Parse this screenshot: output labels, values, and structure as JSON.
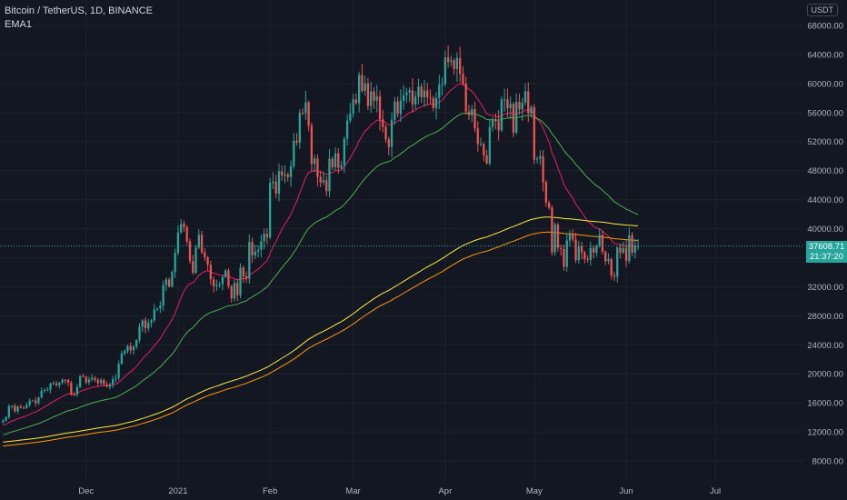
{
  "header": {
    "title": "Bitcoin / TetherUS, 1D, BINANCE",
    "indicator": "EMA1"
  },
  "currency_badge": "USDT",
  "last_price": {
    "price": "37608.71",
    "countdown": "21:37:20"
  },
  "colors": {
    "background": "#131722",
    "up": "#26a69a",
    "down": "#ef5350",
    "ema_fast": "#e91e63",
    "ema_mid": "#4caf50",
    "ema_slow_a": "#ffeb3b",
    "ema_slow_b": "#ff9800",
    "grid": "#1e222d"
  },
  "chart_data": {
    "type": "candlestick",
    "title": "Bitcoin / TetherUS, 1D, BINANCE",
    "y_axis": {
      "position": "right",
      "ticks": [
        8000,
        12000,
        16000,
        20000,
        24000,
        28000,
        32000,
        36000,
        40000,
        44000,
        48000,
        52000,
        56000,
        60000,
        64000,
        68000
      ],
      "tick_labels": [
        "8000.00",
        "12000.00",
        "16000.00",
        "20000.00",
        "24000.00",
        "28000.00",
        "32000.00",
        "36000.00",
        "40000.00",
        "44000.00",
        "48000.00",
        "52000.00",
        "56000.00",
        "60000.00",
        "64000.00",
        "68000.00"
      ],
      "range": [
        6000,
        69500
      ]
    },
    "x_axis": {
      "ticks": [
        "2020-12-01",
        "2021-01-01",
        "2021-02-01",
        "2021-03-01",
        "2021-04-01",
        "2021-05-01",
        "2021-06-01",
        "2021-07-01"
      ],
      "tick_labels": [
        "Dec",
        "2021",
        "Feb",
        "Mar",
        "Apr",
        "May",
        "Jun",
        "Jul"
      ],
      "range": [
        "2020-11-02",
        "2021-07-31"
      ]
    },
    "grid": true,
    "series_closes": {
      "start_date": "2020-11-03",
      "values": [
        13550,
        14030,
        15580,
        15590,
        14840,
        15480,
        15330,
        15290,
        15700,
        16300,
        16320,
        15960,
        16730,
        17650,
        17780,
        17820,
        18660,
        18700,
        18420,
        18760,
        19170,
        19130,
        18770,
        17150,
        17140,
        18180,
        19710,
        19630,
        18800,
        19200,
        19420,
        19160,
        18720,
        19150,
        18530,
        18260,
        18560,
        19270,
        19440,
        21360,
        22800,
        23100,
        23830,
        23250,
        23720,
        24670,
        26480,
        27360,
        26260,
        27040,
        27380,
        28870,
        29000,
        29410,
        32200,
        33000,
        32030,
        34030,
        36630,
        39480,
        40670,
        40240,
        38240,
        35540,
        33910,
        37390,
        39160,
        36740,
        36070,
        35040,
        33010,
        32080,
        32260,
        32350,
        33360,
        34250,
        32090,
        30390,
        32510,
        30830,
        34630,
        33430,
        33120,
        38170,
        36320,
        36840,
        37080,
        38260,
        39290,
        38800,
        46280,
        46480,
        44840,
        47910,
        47310,
        47490,
        47110,
        48640,
        52120,
        51870,
        55940,
        55910,
        57390,
        54170,
        48900,
        49680,
        47100,
        46360,
        46680,
        45150,
        49640,
        48460,
        50370,
        48380,
        48760,
        52400,
        54880,
        55860,
        57810,
        57300,
        61180,
        58970,
        60000,
        56900,
        58910,
        57630,
        58250,
        55060,
        54030,
        52300,
        51250,
        55000,
        57520,
        55790,
        57650,
        58390,
        58760,
        59060,
        57120,
        58190,
        59590,
        58120,
        59040,
        58070,
        57960,
        56600,
        58020,
        59850,
        59930,
        63600,
        62980,
        63180,
        62000,
        63510,
        61330,
        60000,
        56150,
        55630,
        56470,
        53820,
        51650,
        51690,
        50090,
        49010,
        54020,
        55030,
        54820,
        53550,
        57800,
        57830,
        56610,
        57200,
        53240,
        57470,
        56430,
        57360,
        58930,
        55880,
        56740,
        49520,
        49650,
        50000,
        46420,
        43580,
        42910,
        36740,
        40580,
        37370,
        37200,
        34770,
        38370,
        39290,
        38520,
        35660,
        37600,
        36730,
        35820,
        35680,
        37340,
        36690,
        37570,
        39150,
        36840,
        35520,
        35820,
        33550,
        33380,
        37400,
        36690,
        37340,
        35550,
        39100,
        36700,
        37580,
        37608
      ]
    },
    "candles_visible": true,
    "ema_lines": [
      "EMA1"
    ]
  }
}
